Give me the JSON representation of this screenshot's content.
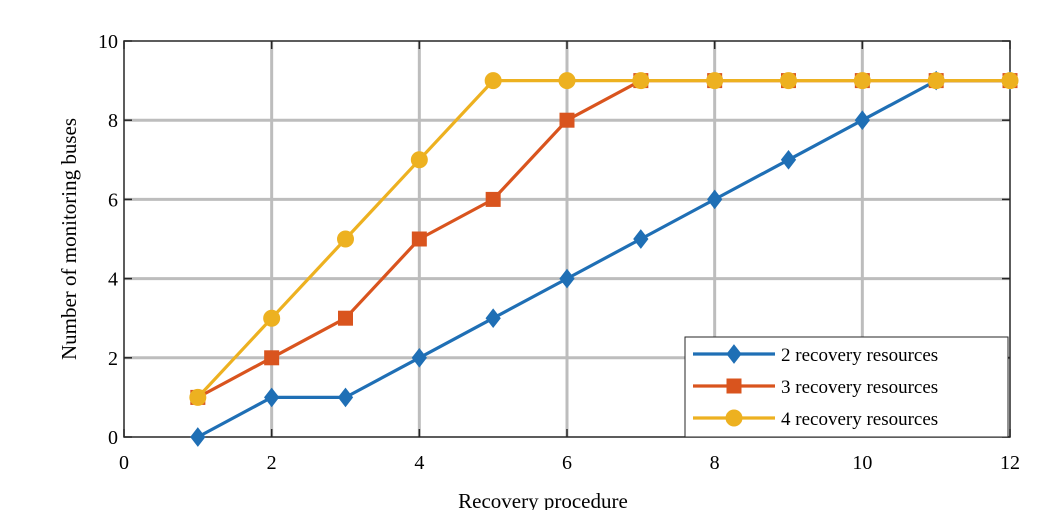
{
  "chart_data": {
    "type": "line",
    "title": "",
    "xlabel": "Recovery procedure",
    "ylabel": "Number of monitoring buses",
    "xlim": [
      0,
      12
    ],
    "ylim": [
      0,
      10
    ],
    "xticks": [
      "0",
      "2",
      "4",
      "6",
      "8",
      "10",
      "12"
    ],
    "yticks": [
      "0",
      "2",
      "4",
      "6",
      "8",
      "10"
    ],
    "grid": true,
    "legend_position": "bottom-right",
    "series": [
      {
        "name": "2 recovery resources",
        "color": "#1f6fb5",
        "marker": "diamond",
        "x": [
          1,
          2,
          3,
          4,
          5,
          6,
          7,
          8,
          9,
          10,
          11,
          12
        ],
        "y": [
          0,
          1,
          1,
          2,
          3,
          4,
          5,
          6,
          7,
          8,
          9,
          9
        ]
      },
      {
        "name": "3 recovery resources",
        "color": "#d9541e",
        "marker": "square",
        "x": [
          1,
          2,
          3,
          4,
          5,
          6,
          7,
          8,
          9,
          10,
          11,
          12
        ],
        "y": [
          1,
          2,
          3,
          5,
          6,
          8,
          9,
          9,
          9,
          9,
          9,
          9
        ]
      },
      {
        "name": "4 recovery resources",
        "color": "#edb120",
        "marker": "circle",
        "x": [
          1,
          2,
          3,
          4,
          5,
          6,
          7,
          8,
          9,
          10,
          11,
          12
        ],
        "y": [
          1,
          3,
          5,
          7,
          9,
          9,
          9,
          9,
          9,
          9,
          9,
          9
        ]
      }
    ]
  }
}
